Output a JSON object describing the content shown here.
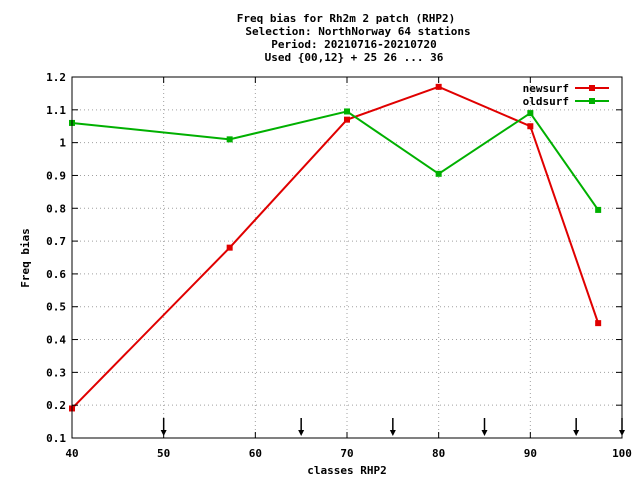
{
  "chart_data": {
    "type": "line",
    "title_lines": [
      "Freq bias  for Rh2m 2 patch (RHP2)",
      "Selection: NorthNorway     64 stations",
      "Period: 20210716-20210720",
      "Used {00,12} + 25 26 ... 36"
    ],
    "xlabel": "classes RHP2",
    "ylabel": "Freq bias",
    "xlim": [
      40,
      100
    ],
    "ylim": [
      0.1,
      1.2
    ],
    "x_ticks": [
      40,
      50,
      60,
      70,
      80,
      90,
      100
    ],
    "y_ticks": [
      0.1,
      0.2,
      0.3,
      0.4,
      0.5,
      0.6,
      0.7,
      0.8,
      0.9,
      1,
      1.1,
      1.2
    ],
    "x_tick_labels": [
      "40",
      "50",
      "60",
      "70",
      "80",
      "90",
      "100"
    ],
    "y_tick_labels": [
      "0.1",
      "0.2",
      "0.3",
      "0.4",
      "0.5",
      "0.6",
      "0.7",
      "0.8",
      "0.9",
      "1",
      "1.1",
      "1.2"
    ],
    "arrow_markers_x": [
      50,
      65,
      75,
      85,
      95,
      100
    ],
    "grid": true,
    "legend_position": "top-right",
    "series": [
      {
        "name": "newsurf",
        "color": "#e00000",
        "x": [
          40,
          57.2,
          70,
          80,
          90,
          97.4
        ],
        "y": [
          0.19,
          0.68,
          1.07,
          1.17,
          1.05,
          0.45
        ]
      },
      {
        "name": "oldsurf",
        "color": "#00b000",
        "x": [
          40,
          57.2,
          70,
          80,
          90,
          97.4
        ],
        "y": [
          1.06,
          1.01,
          1.095,
          0.905,
          1.09,
          0.795
        ]
      }
    ]
  }
}
